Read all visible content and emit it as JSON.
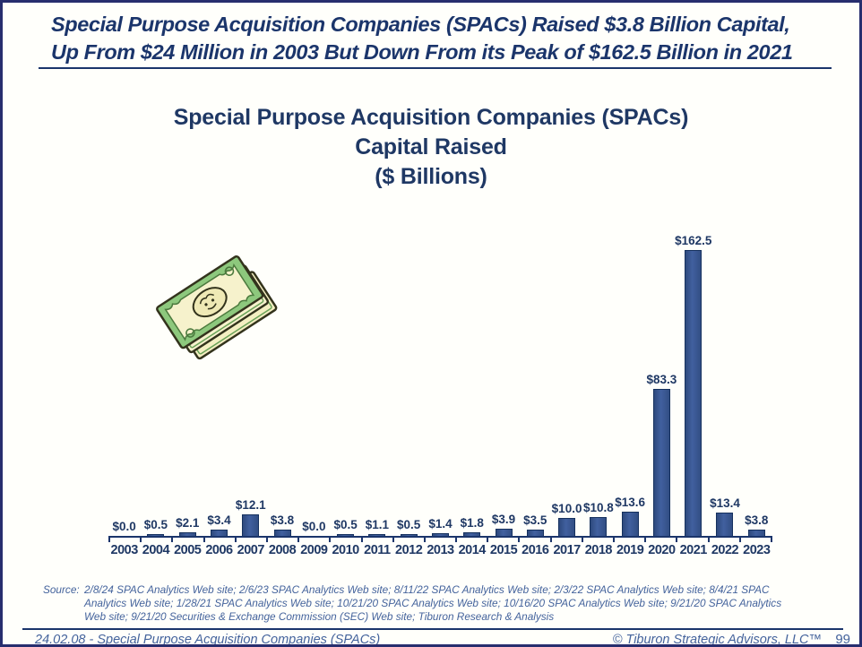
{
  "header": {
    "line1": "Special Purpose Acquisition Companies (SPACs) Raised $3.8 Billion Capital,",
    "line2": "Up From $24 Million in 2003 But Down From its Peak of $162.5 Billion in 2021"
  },
  "title": {
    "line1": "Special Purpose Acquisition Companies (SPACs)",
    "line2": "Capital Raised",
    "line3": "($ Billions)"
  },
  "icons": {
    "money_stack": "money-stack-clipart"
  },
  "chart_data": {
    "type": "bar",
    "title": "Special Purpose Acquisition Companies (SPACs) Capital Raised ($ Billions)",
    "categories": [
      "2003",
      "2004",
      "2005",
      "2006",
      "2007",
      "2008",
      "2009",
      "2010",
      "2011",
      "2012",
      "2013",
      "2014",
      "2015",
      "2016",
      "2017",
      "2018",
      "2019",
      "2020",
      "2021",
      "2022",
      "2023"
    ],
    "values": [
      0.0,
      0.5,
      2.1,
      3.4,
      12.1,
      3.8,
      0.0,
      0.5,
      1.1,
      0.5,
      1.4,
      1.8,
      3.9,
      3.5,
      10.0,
      10.8,
      13.6,
      83.3,
      162.5,
      13.4,
      3.8
    ],
    "labels": [
      "$0.0",
      "$0.5",
      "$2.1",
      "$3.4",
      "$12.1",
      "$3.8",
      "$0.0",
      "$0.5",
      "$1.1",
      "$0.5",
      "$1.4",
      "$1.8",
      "$3.9",
      "$3.5",
      "$10.0",
      "$10.8",
      "$13.6",
      "$83.3",
      "$162.5",
      "$13.4",
      "$3.8"
    ],
    "xlabel": "",
    "ylabel": "",
    "ylim": [
      0,
      170
    ],
    "grid": false,
    "legend": null,
    "bar_color": "#3a5792",
    "bar_border_color": "#16315e"
  },
  "source": {
    "label": "Source:",
    "text": "2/8/24 SPAC Analytics Web site; 2/6/23 SPAC Analytics Web site; 8/11/22 SPAC Analytics Web site; 2/3/22 SPAC Analytics Web site; 8/4/21 SPAC Analytics Web site; 1/28/21 SPAC Analytics Web site; 10/21/20 SPAC Analytics Web site; 10/16/20 SPAC Analytics Web site; 9/21/20 SPAC Analytics Web site; 9/21/20 Securities & Exchange Commission (SEC) Web site; Tiburon Research & Analysis"
  },
  "footer": {
    "left": "24.02.08 - Special Purpose Acquisition Companies  (SPACs)",
    "copyright": "© Tiburon Strategic Advisors, LLC™",
    "page_number": "99"
  },
  "colors": {
    "navy_text": "#1b356b",
    "title_navy": "#1f3864",
    "slate_italic": "#44639c",
    "page_border": "#272e6e",
    "bill_green": "#8dc87d",
    "bill_cream": "#f6f2cc"
  }
}
